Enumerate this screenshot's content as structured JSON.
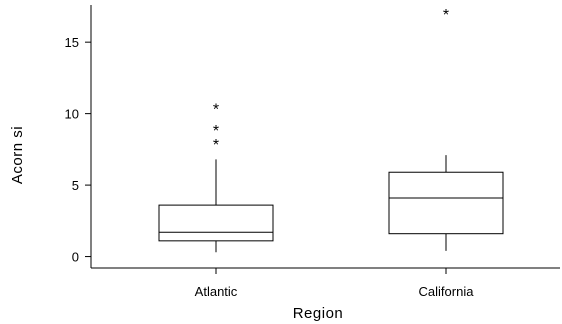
{
  "chart_data": {
    "type": "boxplot",
    "xlabel": "Region",
    "ylabel": "Acorn si",
    "ylim": [
      -0.8,
      17.6
    ],
    "yticks": [
      0,
      5,
      10,
      15
    ],
    "categories": [
      "Atlantic",
      "California"
    ],
    "boxes": [
      {
        "name": "Atlantic",
        "whisker_low": 0.3,
        "q1": 1.1,
        "median": 1.7,
        "q3": 3.6,
        "whisker_high": 6.8,
        "outliers": [
          8.0,
          9.0,
          10.5
        ]
      },
      {
        "name": "California",
        "whisker_low": 0.4,
        "q1": 1.6,
        "median": 4.1,
        "q3": 5.9,
        "whisker_high": 7.1,
        "outliers": [
          17.1
        ]
      }
    ],
    "outlier_symbol": "*",
    "colors": {
      "line": "#000000",
      "fill": "#ffffff"
    }
  }
}
